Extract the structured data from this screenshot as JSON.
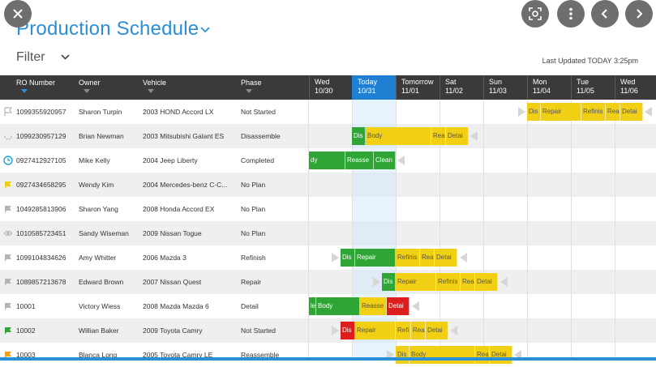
{
  "page": {
    "title": "Production Schedule",
    "filter_label": "Filter",
    "last_updated": "Last Updated TODAY 3:25pm"
  },
  "topbar": {
    "close_icon": "close-icon",
    "lens_icon": "lens-icon",
    "more_icon": "more-vert-icon",
    "prev_icon": "chevron-left-icon",
    "next_icon": "chevron-right-icon"
  },
  "columns": {
    "ro": "RO Number",
    "owner": "Owner",
    "vehicle": "Vehicle",
    "phase": "Phase"
  },
  "days": [
    {
      "name": "Wed",
      "date": "10/30"
    },
    {
      "name": "Today",
      "date": "10/31"
    },
    {
      "name": "Tomorrow",
      "date": "11/01"
    },
    {
      "name": "Sat",
      "date": "11/02"
    },
    {
      "name": "Sun",
      "date": "11/03"
    },
    {
      "name": "Mon",
      "date": "11/04"
    },
    {
      "name": "Tue",
      "date": "11/05"
    },
    {
      "name": "Wed",
      "date": "11/06"
    }
  ],
  "rows": [
    {
      "ro": "1099355920957",
      "owner": "Sharon Turpin",
      "vehicle": "2003 HOND Accord LX",
      "phase": "Not Started",
      "icon": "flag-outline-icon"
    },
    {
      "ro": "1099230957129",
      "owner": "Brian Newman",
      "vehicle": "2003 Mitsubishi Galant ES",
      "phase": "Disassemble",
      "icon": "spinner-icon"
    },
    {
      "ro": "0927412927105",
      "owner": "Mike Kelly",
      "vehicle": "2004 Jeep Liberty",
      "phase": "Completed",
      "icon": "clock-icon"
    },
    {
      "ro": "0927434658295",
      "owner": "Wendy Kim",
      "vehicle": "2004 Mercedes-benz C-C...",
      "phase": "No Plan",
      "icon": "flag-yellow-icon"
    },
    {
      "ro": "1049285813906",
      "owner": "Sharon Yang",
      "vehicle": "2008 Honda Accord EX",
      "phase": "No Plan",
      "icon": "flag-grey-icon"
    },
    {
      "ro": "1010585723451",
      "owner": "Sandy Wiseman",
      "vehicle": "2009 Nissan Togue",
      "phase": "No Plan",
      "icon": "eye-icon"
    },
    {
      "ro": "1099104834626",
      "owner": "Amy Whitter",
      "vehicle": "2006 Mazda 3",
      "phase": "Refinish",
      "icon": "flag-grey-icon"
    },
    {
      "ro": "1089857213678",
      "owner": "Edward Brown",
      "vehicle": "2007 Nissan Quest",
      "phase": "Repair",
      "icon": "flag-grey-icon"
    },
    {
      "ro": "10001",
      "owner": "Victory Wiess",
      "vehicle": "2008 Mazda Mazda 6",
      "phase": "Detail",
      "icon": "flag-grey-icon"
    },
    {
      "ro": "10002",
      "owner": "Willian Baker",
      "vehicle": "2009 Toyota Camry",
      "phase": "Not Started",
      "icon": "flag-green-icon"
    },
    {
      "ro": "10003",
      "owner": "Blanca Long",
      "vehicle": "2005 Toyota Camry LE",
      "phase": "Reassemble",
      "icon": "flag-orange-icon"
    }
  ],
  "bars": {
    "r0": [
      "Dis",
      "Repair",
      "Refinis",
      "Rea",
      "Detai"
    ],
    "r1": [
      "Dis",
      "Body",
      "Rea",
      "Detai"
    ],
    "r2": [
      "dy",
      "Reasse",
      "Clean"
    ],
    "r6": [
      "Dis",
      "Repair",
      "Refinis",
      "Rea",
      "Detai"
    ],
    "r7": [
      "Dis",
      "Repair",
      "Refinis",
      "Rea",
      "Detai"
    ],
    "r8": [
      "le",
      "Body",
      "Reasse",
      "Detai"
    ],
    "r9": [
      "Dis",
      "Repair",
      "Refi",
      "Rea",
      "Detai"
    ],
    "r10": [
      "Dis",
      "Body",
      "Rea",
      "Detai"
    ]
  },
  "colors": {
    "accent": "#2a8fd6",
    "header_bg": "#3a3a3a",
    "phase_green": "#2ea534",
    "phase_yellow": "#f1cf14",
    "phase_red": "#dc1e1e"
  }
}
